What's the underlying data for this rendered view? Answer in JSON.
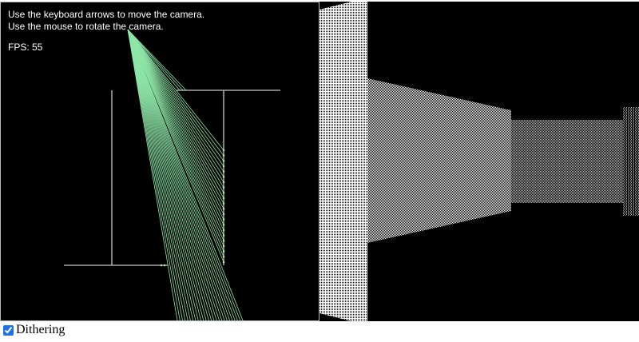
{
  "instructions": {
    "line1": "Use the keyboard arrows to move the camera.",
    "line2": "Use the mouse to rotate the camera."
  },
  "fps": {
    "label": "FPS: 55",
    "value": 55
  },
  "options": {
    "dithering_label": "Dithering",
    "dithering_checked": true
  },
  "colors": {
    "map_background": "#000000",
    "map_walls": "#c8c8c8",
    "rays": "#8fe6a8",
    "view_background": "#000000",
    "view_walls": "#ffffff",
    "hud_text": "#ffffff"
  }
}
